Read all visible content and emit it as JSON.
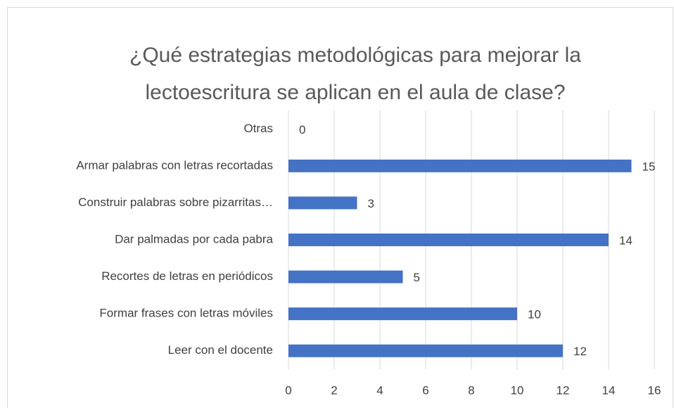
{
  "chart_data": {
    "type": "bar",
    "orientation": "horizontal",
    "title": [
      "¿Qué estrategias metodológicas para mejorar la",
      "lectoescritura se aplican en el aula de clase?"
    ],
    "categories": [
      "Otras",
      "Armar palabras con letras recortadas",
      "Construir palabras sobre pizarritas…",
      "Dar palmadas por cada pabra",
      "Recortes de letras en periódicos",
      "Formar frases con letras móviles",
      "Leer con el docente"
    ],
    "values": [
      0,
      15,
      3,
      14,
      5,
      10,
      12
    ],
    "color": "#4472c4",
    "xlim": [
      0,
      16
    ],
    "xticks": [
      0,
      2,
      4,
      6,
      8,
      10,
      12,
      14,
      16
    ],
    "grid": true,
    "data_labels": true
  }
}
